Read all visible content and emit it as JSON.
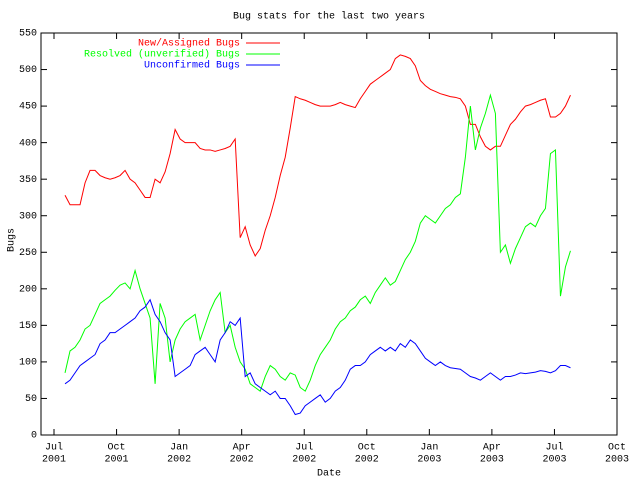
{
  "chart_data": {
    "type": "line",
    "title": "Bug stats for the last two years",
    "xlabel": "Date",
    "ylabel": "Bugs",
    "legend": "top-left",
    "grid": false,
    "x": [
      2001.544,
      2001.564,
      2001.584,
      2001.604,
      2001.624,
      2001.644,
      2001.664,
      2001.684,
      2001.704,
      2001.724,
      2001.744,
      2001.764,
      2001.784,
      2001.804,
      2001.824,
      2001.844,
      2001.864,
      2001.884,
      2001.904,
      2001.924,
      2001.944,
      2001.964,
      2001.984,
      2002.004,
      2002.024,
      2002.044,
      2002.064,
      2002.084,
      2002.104,
      2002.124,
      2002.144,
      2002.164,
      2002.184,
      2002.204,
      2002.224,
      2002.244,
      2002.264,
      2002.284,
      2002.304,
      2002.324,
      2002.344,
      2002.364,
      2002.384,
      2002.404,
      2002.424,
      2002.444,
      2002.464,
      2002.484,
      2002.504,
      2002.524,
      2002.544,
      2002.564,
      2002.584,
      2002.604,
      2002.624,
      2002.644,
      2002.664,
      2002.684,
      2002.704,
      2002.724,
      2002.744,
      2002.764,
      2002.784,
      2002.804,
      2002.824,
      2002.844,
      2002.864,
      2002.884,
      2002.904,
      2002.924,
      2002.944,
      2002.964,
      2002.984,
      2003.004,
      2003.024,
      2003.044,
      2003.064,
      2003.084,
      2003.104,
      2003.124,
      2003.144,
      2003.164,
      2003.184,
      2003.204,
      2003.224,
      2003.244,
      2003.264,
      2003.284,
      2003.304,
      2003.324,
      2003.344,
      2003.364,
      2003.384,
      2003.404,
      2003.424,
      2003.444,
      2003.464,
      2003.484,
      2003.504,
      2003.524,
      2003.544,
      2003.564
    ],
    "series": [
      {
        "name": "New/Assigned Bugs",
        "color": "#ff0000",
        "values": [
          328,
          315,
          315,
          315,
          345,
          362,
          362,
          355,
          352,
          350,
          352,
          355,
          362,
          350,
          345,
          335,
          325,
          325,
          350,
          345,
          360,
          385,
          418,
          405,
          400,
          400,
          400,
          392,
          390,
          390,
          388,
          390,
          392,
          395,
          405,
          270,
          285,
          260,
          245,
          255,
          280,
          300,
          325,
          355,
          380,
          420,
          463,
          460,
          458,
          455,
          452,
          450,
          450,
          450,
          452,
          455,
          452,
          450,
          448,
          460,
          470,
          480,
          485,
          490,
          495,
          500,
          515,
          520,
          518,
          515,
          505,
          485,
          478,
          473,
          470,
          467,
          465,
          463,
          462,
          460,
          450,
          425,
          425,
          408,
          395,
          390,
          395,
          395,
          410,
          425,
          432,
          442,
          450,
          452,
          455,
          458,
          460,
          435,
          435,
          440,
          450,
          465
        ]
      },
      {
        "name": "Resolved (unverified) Bugs",
        "color": "#00ff00",
        "values": [
          85,
          115,
          120,
          130,
          145,
          150,
          165,
          180,
          185,
          190,
          198,
          205,
          208,
          200,
          225,
          200,
          180,
          160,
          70,
          180,
          160,
          100,
          130,
          145,
          155,
          160,
          165,
          130,
          150,
          170,
          185,
          195,
          140,
          150,
          120,
          100,
          90,
          70,
          65,
          60,
          80,
          95,
          90,
          80,
          75,
          85,
          82,
          65,
          60,
          75,
          95,
          110,
          120,
          130,
          145,
          155,
          160,
          170,
          175,
          185,
          190,
          180,
          195,
          205,
          215,
          205,
          210,
          225,
          240,
          250,
          265,
          290,
          300,
          295,
          290,
          300,
          310,
          315,
          325,
          330,
          380,
          450,
          390,
          420,
          440,
          465,
          440,
          250,
          260,
          235,
          255,
          270,
          285,
          290,
          285,
          300,
          310,
          385,
          390,
          190,
          230,
          252
        ]
      },
      {
        "name": "Unconfirmed Bugs",
        "color": "#0000ff",
        "values": [
          70,
          75,
          85,
          95,
          100,
          105,
          110,
          125,
          130,
          140,
          140,
          145,
          150,
          155,
          160,
          170,
          175,
          185,
          165,
          155,
          140,
          130,
          80,
          85,
          90,
          95,
          110,
          115,
          120,
          110,
          100,
          130,
          140,
          155,
          150,
          160,
          80,
          85,
          70,
          65,
          60,
          55,
          60,
          50,
          50,
          40,
          28,
          30,
          40,
          45,
          50,
          55,
          45,
          50,
          60,
          65,
          75,
          90,
          95,
          95,
          100,
          110,
          115,
          120,
          115,
          120,
          115,
          125,
          120,
          130,
          125,
          115,
          105,
          100,
          95,
          100,
          95,
          92,
          91,
          90,
          85,
          80,
          78,
          75,
          80,
          85,
          80,
          75,
          80,
          80,
          82,
          85,
          84,
          85,
          86,
          88,
          87,
          85,
          88,
          95,
          95,
          92
        ]
      }
    ],
    "xlim": [
      2001.448,
      2003.75
    ],
    "xticks": [
      {
        "value": 2001.5,
        "label": [
          "Jul",
          "2001"
        ]
      },
      {
        "value": 2001.75,
        "label": [
          "Oct",
          "2001"
        ]
      },
      {
        "value": 2002.0,
        "label": [
          "Jan",
          "2002"
        ]
      },
      {
        "value": 2002.25,
        "label": [
          "Apr",
          "2002"
        ]
      },
      {
        "value": 2002.5,
        "label": [
          "Jul",
          "2002"
        ]
      },
      {
        "value": 2002.75,
        "label": [
          "Oct",
          "2002"
        ]
      },
      {
        "value": 2003.0,
        "label": [
          "Jan",
          "2003"
        ]
      },
      {
        "value": 2003.25,
        "label": [
          "Apr",
          "2003"
        ]
      },
      {
        "value": 2003.5,
        "label": [
          "Jul",
          "2003"
        ]
      },
      {
        "value": 2003.75,
        "label": [
          "Oct",
          "2003"
        ]
      }
    ],
    "ylim": [
      0,
      550
    ],
    "yticks": [
      0,
      50,
      100,
      150,
      200,
      250,
      300,
      350,
      400,
      450,
      500,
      550
    ]
  }
}
